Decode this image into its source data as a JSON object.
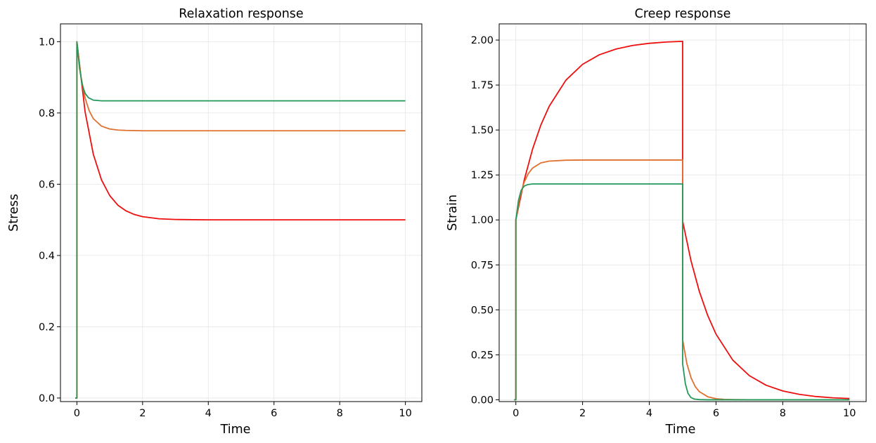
{
  "chart_data": [
    {
      "type": "line",
      "title": "Relaxation response",
      "xlabel": "Time",
      "ylabel": "Stress",
      "xlim": [
        -0.5,
        10.5
      ],
      "ylim": [
        -0.01,
        1.05
      ],
      "xticks": [
        0,
        2,
        4,
        6,
        8,
        10
      ],
      "xtick_labels": [
        "0",
        "2",
        "4",
        "6",
        "8",
        "10"
      ],
      "yticks": [
        0.0,
        0.2,
        0.4,
        0.6,
        0.8,
        1.0
      ],
      "ytick_labels": [
        "0.0",
        "0.2",
        "0.4",
        "0.6",
        "0.8",
        "1.0"
      ],
      "grid": true,
      "series": [
        {
          "color": "#ee0e0e",
          "x": [
            -0.05,
            0,
            0,
            0.25,
            0.5,
            0.75,
            1,
            1.25,
            1.5,
            1.75,
            2,
            2.5,
            3,
            4,
            5,
            6,
            7,
            8,
            9,
            10
          ],
          "values": [
            0,
            0,
            1.0,
            0.803,
            0.684,
            0.612,
            0.568,
            0.541,
            0.525,
            0.515,
            0.509,
            0.503,
            0.501,
            0.5,
            0.5,
            0.5,
            0.5,
            0.5,
            0.5,
            0.5
          ]
        },
        {
          "color": "#e07030",
          "x": [
            -0.05,
            0,
            0,
            0.125,
            0.25,
            0.375,
            0.5,
            0.75,
            1,
            1.25,
            1.5,
            2,
            3,
            4,
            5,
            6,
            7,
            8,
            9,
            10
          ],
          "values": [
            0,
            0,
            1.0,
            0.902,
            0.842,
            0.806,
            0.784,
            0.763,
            0.755,
            0.752,
            0.751,
            0.75,
            0.75,
            0.75,
            0.75,
            0.75,
            0.75,
            0.75,
            0.75,
            0.75
          ]
        },
        {
          "color": "#22995a",
          "x": [
            -0.05,
            0,
            0,
            0.08,
            0.16,
            0.25,
            0.35,
            0.5,
            0.75,
            1,
            1.5,
            2,
            3,
            4,
            5,
            6,
            7,
            8,
            9,
            10
          ],
          "values": [
            0,
            0,
            1.0,
            0.926,
            0.88,
            0.855,
            0.843,
            0.836,
            0.834,
            0.834,
            0.834,
            0.834,
            0.834,
            0.834,
            0.834,
            0.834,
            0.834,
            0.834,
            0.834,
            0.834
          ]
        }
      ]
    },
    {
      "type": "line",
      "title": "Creep response",
      "xlabel": "Time",
      "ylabel": "Strain",
      "xlim": [
        -0.5,
        10.5
      ],
      "ylim": [
        -0.01,
        2.09
      ],
      "xticks": [
        0,
        2,
        4,
        6,
        8,
        10
      ],
      "xtick_labels": [
        "0",
        "2",
        "4",
        "6",
        "8",
        "10"
      ],
      "yticks": [
        0.0,
        0.25,
        0.5,
        0.75,
        1.0,
        1.25,
        1.5,
        1.75,
        2.0
      ],
      "ytick_labels": [
        "0.00",
        "0.25",
        "0.50",
        "0.75",
        "1.00",
        "1.25",
        "1.50",
        "1.75",
        "2.00"
      ],
      "grid": true,
      "series": [
        {
          "color": "#ee0e0e",
          "x": [
            -0.05,
            0,
            0,
            0.25,
            0.5,
            0.75,
            1,
            1.5,
            2,
            2.5,
            3,
            3.5,
            4,
            4.5,
            5,
            5,
            5.25,
            5.5,
            5.75,
            6,
            6.5,
            7,
            7.5,
            8,
            8.5,
            9,
            9.5,
            10
          ],
          "values": [
            0,
            0,
            1.0,
            1.221,
            1.393,
            1.528,
            1.632,
            1.777,
            1.865,
            1.918,
            1.95,
            1.97,
            1.982,
            1.989,
            1.993,
            0.993,
            0.773,
            0.602,
            0.469,
            0.365,
            0.221,
            0.134,
            0.081,
            0.049,
            0.03,
            0.018,
            0.011,
            0.007
          ]
        },
        {
          "color": "#e07030",
          "x": [
            -0.05,
            0,
            0,
            0.125,
            0.25,
            0.375,
            0.5,
            0.75,
            1,
            1.5,
            2,
            3,
            4,
            5,
            5,
            5.125,
            5.25,
            5.375,
            5.5,
            5.75,
            6,
            6.25,
            6.5,
            7,
            8,
            9,
            10
          ],
          "values": [
            0,
            0,
            1.0,
            1.131,
            1.21,
            1.258,
            1.288,
            1.317,
            1.327,
            1.332,
            1.333,
            1.333,
            1.333,
            1.333,
            0.333,
            0.202,
            0.123,
            0.074,
            0.045,
            0.017,
            0.006,
            0.002,
            0.001,
            0.0,
            0.0,
            0.0,
            0.0
          ]
        },
        {
          "color": "#22995a",
          "x": [
            -0.05,
            0,
            0,
            0.08,
            0.16,
            0.25,
            0.35,
            0.5,
            0.75,
            1,
            2,
            3,
            4,
            5,
            5,
            5.08,
            5.16,
            5.25,
            5.35,
            5.5,
            5.75,
            6,
            6.5,
            7,
            8,
            9,
            10
          ],
          "values": [
            0,
            0,
            1.0,
            1.11,
            1.165,
            1.188,
            1.196,
            1.2,
            1.2,
            1.2,
            1.2,
            1.2,
            1.2,
            1.2,
            0.2,
            0.09,
            0.036,
            0.012,
            0.004,
            0.001,
            0.0,
            0.0,
            0.0,
            0.0,
            0.0,
            0.0,
            0.0
          ]
        }
      ]
    }
  ]
}
